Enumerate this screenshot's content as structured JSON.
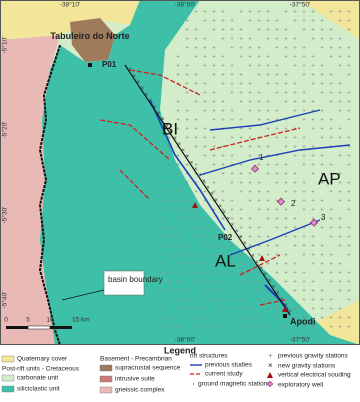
{
  "map": {
    "coordinates": {
      "top": [
        "-38°10'",
        "-38°00'",
        "-37°50'"
      ],
      "left": [
        "-5°10'",
        "-5°20'",
        "-5°30'",
        "-5°40'"
      ],
      "bottom": [
        "-38°00'",
        "-37°50'"
      ]
    },
    "labels": {
      "town_north": "Tabuleiro do Norte",
      "p01": "P01",
      "p02": "P02",
      "bi": "BI",
      "ap": "AP",
      "al": "AL",
      "town_south": "Apodi",
      "well_1": "1",
      "well_2": "2",
      "well_3": "3",
      "basin_boundary": "basin boundary"
    },
    "scale": {
      "ticks": [
        "0",
        "5",
        "10",
        "15 km"
      ]
    }
  },
  "legend": {
    "title": "Legend",
    "quaternary": "Quaternary cover",
    "post_rift": "Post-rift units - Cretaceous",
    "carbonate": "carbonate unit",
    "siliciclastic": "siliciclastic unit",
    "basement": "Basement - Precambrian",
    "supracrustal": "supracrustal sequence",
    "intrusive": "intrusive suite",
    "gneissic": "gneissic complex",
    "rift": "rift structures",
    "previous_studies": "previous studies",
    "current_study": "current study",
    "ground_magnetic": "ground magnetic stations",
    "previous_gravity": "previous gravity stations",
    "new_gravity": "new gravity stations",
    "ves": "vertical electrical souding",
    "well": "exploratory well"
  }
}
